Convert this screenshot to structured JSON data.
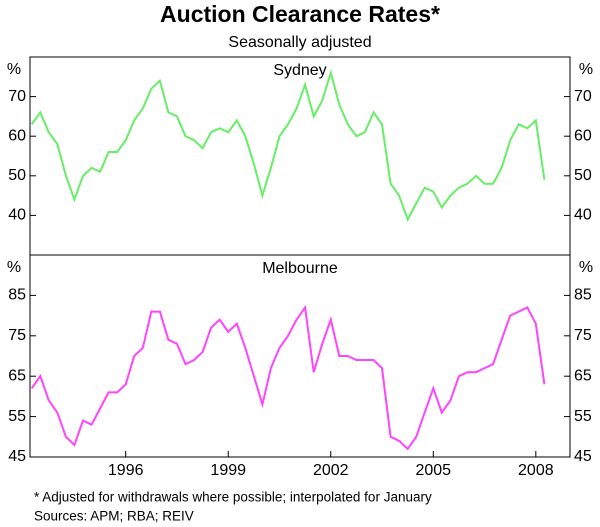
{
  "title": "Auction Clearance Rates*",
  "subtitle": "Seasonally adjusted",
  "notes": [
    "*   Adjusted for withdrawals where possible; interpolated for January",
    "Sources: APM; RBA; REIV"
  ],
  "chart_data": [
    {
      "type": "line",
      "title": "Sydney",
      "y_unit": "%",
      "color": "#66ee66",
      "xlim": [
        1993.2,
        2009.0
      ],
      "ylim": [
        30,
        80
      ],
      "yticks": [
        40,
        50,
        60,
        70
      ],
      "x": [
        1993.25,
        1993.5,
        1993.75,
        1994,
        1994.25,
        1994.5,
        1994.75,
        1995,
        1995.25,
        1995.5,
        1995.75,
        1996,
        1996.25,
        1996.5,
        1996.75,
        1997,
        1997.25,
        1997.5,
        1997.75,
        1998,
        1998.25,
        1998.5,
        1998.75,
        1999,
        1999.25,
        1999.5,
        1999.75,
        2000,
        2000.25,
        2000.5,
        2000.75,
        2001,
        2001.25,
        2001.5,
        2001.75,
        2002,
        2002.25,
        2002.5,
        2002.75,
        2003,
        2003.25,
        2003.5,
        2003.75,
        2004,
        2004.25,
        2004.5,
        2004.75,
        2005,
        2005.25,
        2005.5,
        2005.75,
        2006,
        2006.25,
        2006.5,
        2006.75,
        2007,
        2007.25,
        2007.5,
        2007.75,
        2008,
        2008.25
      ],
      "values": [
        63,
        66,
        61,
        58,
        50,
        44,
        50,
        52,
        51,
        56,
        56,
        59,
        64,
        67,
        72,
        74,
        66,
        65,
        60,
        59,
        57,
        61,
        62,
        61,
        64,
        60,
        53,
        45,
        52,
        60,
        63,
        67,
        73,
        65,
        69,
        76,
        68,
        63,
        60,
        61,
        66,
        63,
        48,
        45,
        39,
        43,
        47,
        46,
        42,
        45,
        47,
        48,
        50,
        48,
        48,
        52,
        59,
        63,
        62,
        64,
        49
      ]
    },
    {
      "type": "line",
      "title": "Melbourne",
      "y_unit": "%",
      "color": "#ff44ff",
      "xlim": [
        1993.2,
        2009.0
      ],
      "ylim": [
        45,
        95
      ],
      "yticks": [
        45,
        55,
        65,
        75,
        85
      ],
      "xticks": [
        1996,
        1999,
        2002,
        2005,
        2008
      ],
      "x": [
        1993.25,
        1993.5,
        1993.75,
        1994,
        1994.25,
        1994.5,
        1994.75,
        1995,
        1995.25,
        1995.5,
        1995.75,
        1996,
        1996.25,
        1996.5,
        1996.75,
        1997,
        1997.25,
        1997.5,
        1997.75,
        1998,
        1998.25,
        1998.5,
        1998.75,
        1999,
        1999.25,
        1999.5,
        1999.75,
        2000,
        2000.25,
        2000.5,
        2000.75,
        2001,
        2001.25,
        2001.5,
        2001.75,
        2002,
        2002.25,
        2002.5,
        2002.75,
        2003,
        2003.25,
        2003.5,
        2003.75,
        2004,
        2004.25,
        2004.5,
        2004.75,
        2005,
        2005.25,
        2005.5,
        2005.75,
        2006,
        2006.25,
        2006.5,
        2006.75,
        2007,
        2007.25,
        2007.5,
        2007.75,
        2008,
        2008.25
      ],
      "values": [
        62,
        65,
        59,
        56,
        50,
        48,
        54,
        53,
        57,
        61,
        61,
        63,
        70,
        72,
        81,
        81,
        74,
        73,
        68,
        69,
        71,
        77,
        79,
        76,
        78,
        72,
        65,
        58,
        67,
        72,
        75,
        79,
        82,
        66,
        73,
        79,
        70,
        70,
        69,
        69,
        69,
        67,
        50,
        49,
        47,
        50,
        56,
        62,
        56,
        59,
        65,
        66,
        66,
        67,
        68,
        74,
        80,
        81,
        82,
        78,
        63
      ]
    }
  ]
}
